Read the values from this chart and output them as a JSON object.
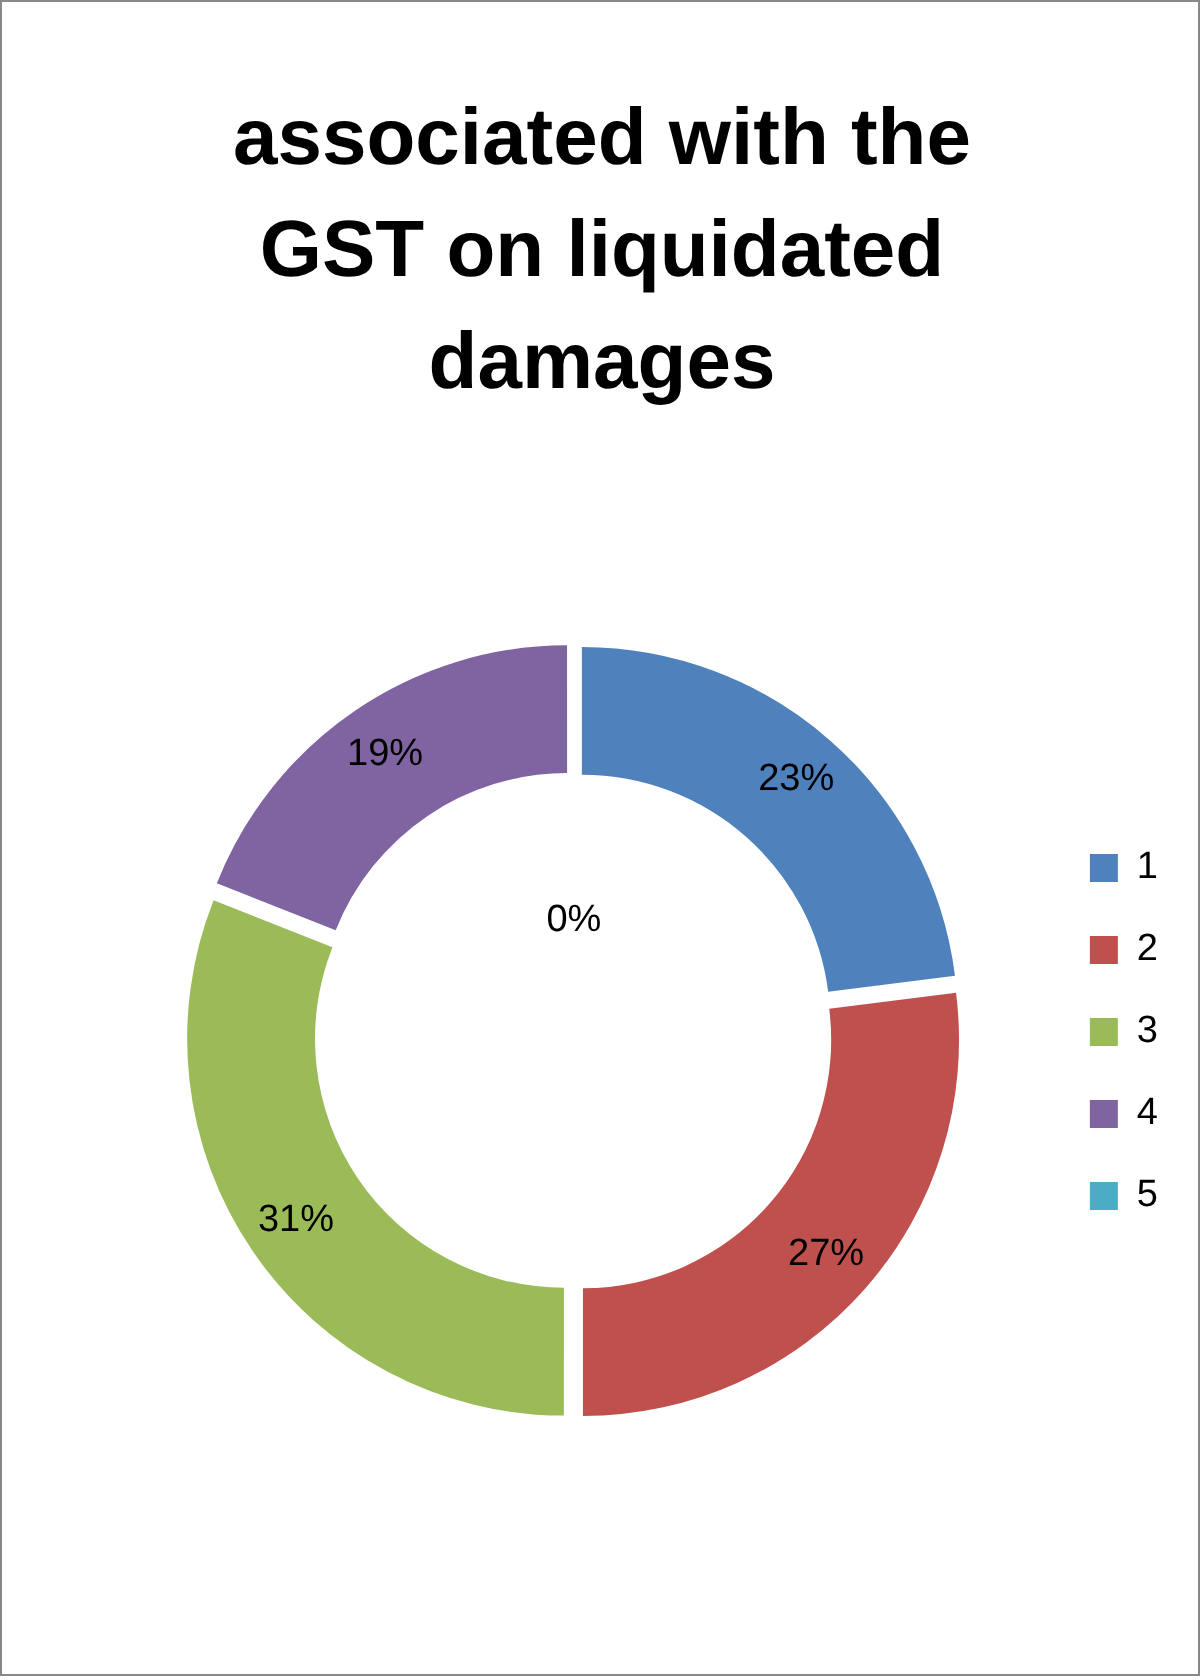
{
  "chart_data": {
    "type": "donut",
    "title": "associated with the GST on liquidated damages",
    "categories": [
      "1",
      "2",
      "3",
      "4",
      "5"
    ],
    "values": [
      23,
      27,
      31,
      19,
      0
    ],
    "value_labels": [
      "23%",
      "27%",
      "31%",
      "19%",
      "0%"
    ],
    "colors": [
      "#4f81bd",
      "#c0504d",
      "#9bbb59",
      "#8064a2",
      "#4bacc6"
    ],
    "legend": "right"
  }
}
